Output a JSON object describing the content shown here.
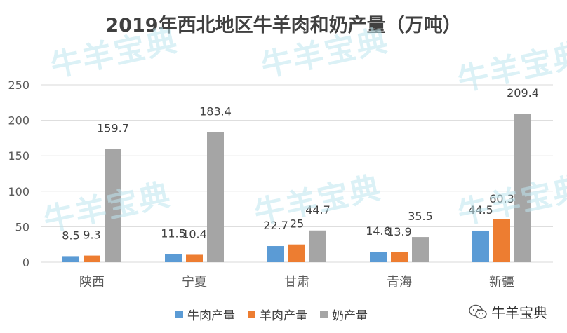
{
  "chart_data": {
    "type": "bar",
    "title": "2019年西北地区牛羊肉和奶产量（万吨）",
    "categories": [
      "陕西",
      "宁夏",
      "甘肃",
      "青海",
      "新疆"
    ],
    "series": [
      {
        "name": "牛肉产量",
        "color": "#5b9bd5",
        "values": [
          8.5,
          11.5,
          22.7,
          14.6,
          44.5
        ]
      },
      {
        "name": "羊肉产量",
        "color": "#ed7d31",
        "values": [
          9.3,
          10.4,
          25,
          13.9,
          60.3
        ]
      },
      {
        "name": "奶产量",
        "color": "#a5a5a5",
        "values": [
          159.7,
          183.4,
          44.7,
          35.5,
          209.4
        ]
      }
    ],
    "yticks": [
      0,
      50,
      100,
      150,
      200,
      250
    ],
    "ylim": [
      0,
      250
    ],
    "grid": true,
    "legend": "bottom"
  },
  "watermark": {
    "text": "牛羊宝典"
  },
  "brand": {
    "label": "牛羊宝典",
    "icon": "wechat-icon"
  }
}
